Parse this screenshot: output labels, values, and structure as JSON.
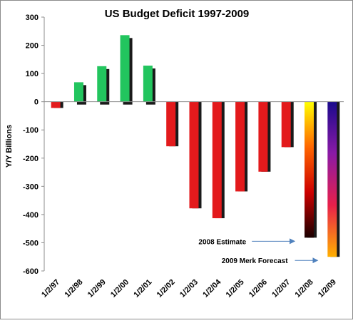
{
  "chart_data": {
    "type": "bar",
    "title": "US Budget Deficit 1997-2009",
    "xlabel": "",
    "ylabel": "Y/Y Billions",
    "ylim": [
      -600,
      300
    ],
    "yticks": [
      300,
      200,
      100,
      0,
      -100,
      -200,
      -300,
      -400,
      -500,
      -600
    ],
    "grid": false,
    "legend": "none",
    "categories": [
      "1/2/97",
      "1/2/98",
      "1/2/99",
      "1/2/00",
      "1/2/01",
      "1/2/02",
      "1/2/03",
      "1/2/04",
      "1/2/05",
      "1/2/06",
      "1/2/07",
      "1/2/08",
      "1/2/09"
    ],
    "values": [
      -22,
      69,
      126,
      236,
      128,
      -158,
      -378,
      -413,
      -318,
      -248,
      -161,
      -482,
      -550
    ],
    "colors": {
      "surplus": "#22c55e",
      "deficit": "#e31a1c",
      "gradient_2008": [
        "#ffff00",
        "#ff6600",
        "#cc0000",
        "#1a0000"
      ],
      "gradient_2009": [
        "#1a0a8c",
        "#8a1aa6",
        "#e8204a",
        "#ffb000"
      ]
    },
    "annotations": [
      {
        "text": "2008 Estimate",
        "points_to": "1/2/08"
      },
      {
        "text": "2009 Merk Forecast",
        "points_to": "1/2/09"
      }
    ]
  }
}
